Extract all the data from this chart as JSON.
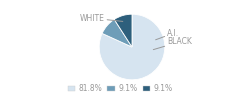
{
  "labels": [
    "WHITE",
    "A.I.",
    "BLACK"
  ],
  "values": [
    81.8,
    9.1,
    9.1
  ],
  "colors": [
    "#d6e4f0",
    "#6e9db8",
    "#2d5f7c"
  ],
  "legend_labels": [
    "81.8%",
    "9.1%",
    "9.1%"
  ],
  "startangle": 90,
  "text_color": "#999999",
  "fontsize": 5.5
}
